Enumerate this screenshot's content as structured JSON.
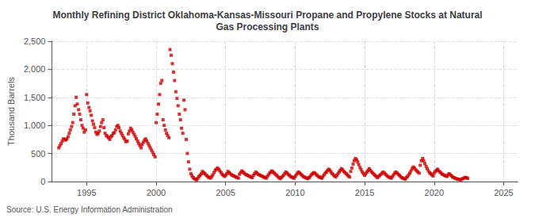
{
  "chart_data": {
    "type": "scatter",
    "title": "Monthly Refining District Oklahoma-Kansas-Missouri Propane and Propylene Stocks at Natural\nGas Processing Plants",
    "ylabel": "Thousand Barrels",
    "annotation": "Source: U.S. Energy Information Administration",
    "color": "#cc0000",
    "marker": "square",
    "grid": true,
    "xlim": [
      1992.5,
      2026.0
    ],
    "xticks": [
      1995,
      2000,
      2005,
      2010,
      2015,
      2020,
      2025
    ],
    "ylim": [
      0,
      2500
    ],
    "yticks": [
      0,
      500,
      {
        "value": 1000,
        "label": "1,000"
      },
      {
        "value": 1500,
        "label": "1,500"
      },
      {
        "value": 2000,
        "label": "2,000"
      },
      {
        "value": 2500,
        "label": "2,500"
      }
    ],
    "x": [
      1993.0,
      1993.08,
      1993.17,
      1993.25,
      1993.33,
      1993.42,
      1993.5,
      1993.58,
      1993.67,
      1993.75,
      1993.83,
      1993.92,
      1994.0,
      1994.08,
      1994.17,
      1994.25,
      1994.33,
      1994.42,
      1994.5,
      1994.58,
      1994.67,
      1994.75,
      1994.83,
      1994.92,
      1995.0,
      1995.08,
      1995.17,
      1995.25,
      1995.33,
      1995.42,
      1995.5,
      1995.58,
      1995.67,
      1995.75,
      1995.83,
      1995.92,
      1996.0,
      1996.08,
      1996.17,
      1996.25,
      1996.33,
      1996.42,
      1996.5,
      1996.58,
      1996.67,
      1996.75,
      1996.83,
      1996.92,
      1997.0,
      1997.08,
      1997.17,
      1997.25,
      1997.33,
      1997.42,
      1997.5,
      1997.58,
      1997.67,
      1997.75,
      1997.83,
      1997.92,
      1998.0,
      1998.08,
      1998.17,
      1998.25,
      1998.33,
      1998.42,
      1998.5,
      1998.58,
      1998.67,
      1998.75,
      1998.83,
      1998.92,
      1999.0,
      1999.08,
      1999.17,
      1999.25,
      1999.33,
      1999.42,
      1999.5,
      1999.58,
      1999.67,
      1999.75,
      1999.83,
      1999.92,
      2000.0,
      2000.08,
      2000.17,
      2000.25,
      2000.33,
      2000.42,
      2000.5,
      2000.58,
      2000.67,
      2000.75,
      2000.83,
      2000.92,
      2001.0,
      2001.08,
      2001.17,
      2001.25,
      2001.33,
      2001.42,
      2001.5,
      2001.58,
      2001.67,
      2001.75,
      2001.83,
      2001.92,
      2002.0,
      2002.08,
      2002.17,
      2002.25,
      2002.33,
      2002.42,
      2002.5,
      2002.58,
      2002.67,
      2002.75,
      2002.83,
      2002.92,
      2003.0,
      2003.08,
      2003.17,
      2003.25,
      2003.33,
      2003.42,
      2003.5,
      2003.58,
      2003.67,
      2003.75,
      2003.83,
      2003.92,
      2004.0,
      2004.08,
      2004.17,
      2004.25,
      2004.33,
      2004.42,
      2004.5,
      2004.58,
      2004.67,
      2004.75,
      2004.83,
      2004.92,
      2005.0,
      2005.08,
      2005.17,
      2005.25,
      2005.33,
      2005.42,
      2005.5,
      2005.58,
      2005.67,
      2005.75,
      2005.83,
      2005.92,
      2006.0,
      2006.08,
      2006.17,
      2006.25,
      2006.33,
      2006.42,
      2006.5,
      2006.58,
      2006.67,
      2006.75,
      2006.83,
      2006.92,
      2007.0,
      2007.08,
      2007.17,
      2007.25,
      2007.33,
      2007.42,
      2007.5,
      2007.58,
      2007.67,
      2007.75,
      2007.83,
      2007.92,
      2008.0,
      2008.08,
      2008.17,
      2008.25,
      2008.33,
      2008.42,
      2008.5,
      2008.58,
      2008.67,
      2008.75,
      2008.83,
      2008.92,
      2009.0,
      2009.08,
      2009.17,
      2009.25,
      2009.33,
      2009.42,
      2009.5,
      2009.58,
      2009.67,
      2009.75,
      2009.83,
      2009.92,
      2010.0,
      2010.08,
      2010.17,
      2010.25,
      2010.33,
      2010.42,
      2010.5,
      2010.58,
      2010.67,
      2010.75,
      2010.83,
      2010.92,
      2011.0,
      2011.08,
      2011.17,
      2011.25,
      2011.33,
      2011.42,
      2011.5,
      2011.58,
      2011.67,
      2011.75,
      2011.83,
      2011.92,
      2012.0,
      2012.08,
      2012.17,
      2012.25,
      2012.33,
      2012.42,
      2012.5,
      2012.58,
      2012.67,
      2012.75,
      2012.83,
      2012.92,
      2013.0,
      2013.08,
      2013.17,
      2013.25,
      2013.33,
      2013.42,
      2013.5,
      2013.58,
      2013.67,
      2013.75,
      2013.83,
      2013.92,
      2014.0,
      2014.08,
      2014.17,
      2014.25,
      2014.33,
      2014.42,
      2014.5,
      2014.58,
      2014.67,
      2014.75,
      2014.83,
      2014.92,
      2015.0,
      2015.08,
      2015.17,
      2015.25,
      2015.33,
      2015.42,
      2015.5,
      2015.58,
      2015.67,
      2015.75,
      2015.83,
      2015.92,
      2016.0,
      2016.08,
      2016.17,
      2016.25,
      2016.33,
      2016.42,
      2016.5,
      2016.58,
      2016.67,
      2016.75,
      2016.83,
      2016.92,
      2017.0,
      2017.08,
      2017.17,
      2017.25,
      2017.33,
      2017.42,
      2017.5,
      2017.58,
      2017.67,
      2017.75,
      2017.83,
      2017.92,
      2018.0,
      2018.08,
      2018.17,
      2018.25,
      2018.33,
      2018.42,
      2018.5,
      2018.58,
      2018.67,
      2018.75,
      2018.83,
      2018.92,
      2019.0,
      2019.08,
      2019.17,
      2019.25,
      2019.33,
      2019.42,
      2019.5,
      2019.58,
      2019.67,
      2019.75,
      2019.83,
      2019.92,
      2020.0,
      2020.08,
      2020.17,
      2020.25,
      2020.33,
      2020.42,
      2020.5,
      2020.58,
      2020.67,
      2020.75,
      2020.83,
      2020.92,
      2021.0,
      2021.08,
      2021.17,
      2021.25,
      2021.33,
      2021.42,
      2021.5,
      2021.58,
      2021.67,
      2021.75,
      2021.83,
      2021.92,
      2022.0,
      2022.08,
      2022.17,
      2022.25,
      2022.33,
      2022.42
    ],
    "values": [
      600,
      640,
      680,
      720,
      760,
      750,
      740,
      760,
      800,
      860,
      920,
      980,
      1050,
      1200,
      1350,
      1500,
      1380,
      1280,
      1200,
      1100,
      1000,
      950,
      880,
      920,
      1550,
      1400,
      1320,
      1260,
      1180,
      1080,
      1020,
      960,
      880,
      840,
      860,
      900,
      980,
      1050,
      1100,
      960,
      860,
      820,
      800,
      780,
      750,
      800,
      820,
      860,
      870,
      920,
      980,
      1000,
      960,
      900,
      860,
      820,
      780,
      750,
      710,
      720,
      850,
      900,
      950,
      920,
      880,
      840,
      800,
      760,
      720,
      680,
      640,
      600,
      660,
      700,
      740,
      760,
      720,
      680,
      640,
      600,
      560,
      520,
      480,
      440,
      1050,
      1200,
      1380,
      1550,
      1750,
      1800,
      1100,
      1000,
      920,
      860,
      820,
      780,
      2350,
      2250,
      2100,
      1950,
      1800,
      1600,
      1480,
      1350,
      1200,
      1100,
      950,
      860,
      1450,
      1280,
      750,
      500,
      350,
      220,
      140,
      100,
      70,
      50,
      40,
      30,
      60,
      90,
      110,
      140,
      180,
      160,
      140,
      120,
      100,
      80,
      70,
      60,
      90,
      120,
      160,
      200,
      220,
      240,
      220,
      190,
      160,
      130,
      110,
      90,
      110,
      140,
      180,
      160,
      140,
      120,
      110,
      100,
      90,
      80,
      70,
      60,
      130,
      160,
      190,
      170,
      150,
      130,
      120,
      110,
      100,
      90,
      80,
      70,
      110,
      140,
      170,
      150,
      130,
      120,
      110,
      100,
      90,
      80,
      70,
      60,
      90,
      120,
      150,
      170,
      190,
      170,
      150,
      130,
      110,
      90,
      70,
      50,
      70,
      90,
      110,
      140,
      170,
      150,
      130,
      110,
      90,
      80,
      70,
      60,
      90,
      120,
      150,
      170,
      150,
      130,
      110,
      90,
      80,
      70,
      60,
      50,
      70,
      90,
      120,
      140,
      160,
      150,
      130,
      110,
      90,
      80,
      70,
      60,
      90,
      120,
      150,
      170,
      200,
      220,
      200,
      170,
      140,
      120,
      100,
      80,
      110,
      140,
      170,
      200,
      230,
      210,
      180,
      160,
      140,
      120,
      100,
      80,
      180,
      240,
      310,
      370,
      410,
      390,
      350,
      300,
      250,
      210,
      170,
      140,
      110,
      140,
      170,
      200,
      230,
      200,
      170,
      150,
      130,
      110,
      90,
      70,
      90,
      110,
      130,
      150,
      170,
      150,
      130,
      110,
      90,
      80,
      70,
      60,
      90,
      120,
      150,
      170,
      150,
      130,
      110,
      90,
      70,
      60,
      50,
      40,
      70,
      90,
      120,
      150,
      190,
      230,
      260,
      240,
      210,
      190,
      170,
      150,
      290,
      370,
      410,
      370,
      320,
      270,
      230,
      190,
      160,
      140,
      120,
      100,
      150,
      180,
      200,
      220,
      190,
      170,
      150,
      130,
      120,
      110,
      100,
      90,
      120,
      140,
      120,
      100,
      80,
      70,
      60,
      50,
      45,
      40,
      35,
      30,
      45,
      55,
      65,
      75,
      65,
      55
    ]
  }
}
